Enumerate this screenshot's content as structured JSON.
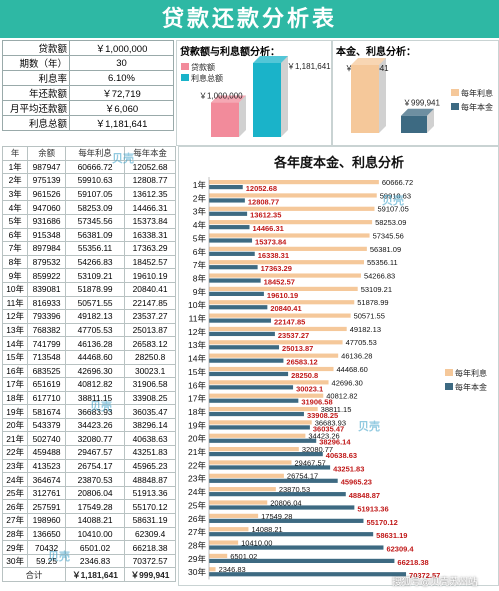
{
  "title": "贷款还款分析表",
  "summary": [
    {
      "label": "贷款额",
      "value": "￥1,000,000"
    },
    {
      "label": "期数（年）",
      "value": "30"
    },
    {
      "label": "利息率",
      "value": "6.10%"
    },
    {
      "label": "年还款额",
      "value": "￥72,719"
    },
    {
      "label": "月平均还款额",
      "value": "￥6,060"
    },
    {
      "label": "利息总额",
      "value": "￥1,181,641"
    }
  ],
  "panel1": {
    "title": "贷款额与利息额分析：",
    "legend": [
      "贷款额",
      "利息总额"
    ],
    "loan_label": "￥1,000,000",
    "interest_label": "￥1,181,641",
    "loan_value": 1000000,
    "interest_value": 1181641,
    "loan_color": "#f28b9b",
    "interest_color": "#1ab3c9"
  },
  "panel2": {
    "title": "本金、利息分析：",
    "legend": [
      "每年利息",
      "每年本金"
    ],
    "interest_label": "￥1,181,641",
    "principal_label": "￥999,941",
    "interest_value": 1181641,
    "principal_value": 999941,
    "interest_color": "#f5c89a",
    "principal_color": "#3d6a82"
  },
  "table": {
    "headers": [
      "年",
      "余额",
      "每年利息",
      "每年本金"
    ],
    "rows": [
      [
        "1年",
        "987947",
        "60666.72",
        "12052.68"
      ],
      [
        "2年",
        "975139",
        "59910.63",
        "12808.77"
      ],
      [
        "3年",
        "961526",
        "59107.05",
        "13612.35"
      ],
      [
        "4年",
        "947060",
        "58253.09",
        "14466.31"
      ],
      [
        "5年",
        "931686",
        "57345.56",
        "15373.84"
      ],
      [
        "6年",
        "915348",
        "56381.09",
        "16338.31"
      ],
      [
        "7年",
        "897984",
        "55356.11",
        "17363.29"
      ],
      [
        "8年",
        "879532",
        "54266.83",
        "18452.57"
      ],
      [
        "9年",
        "859922",
        "53109.21",
        "19610.19"
      ],
      [
        "10年",
        "839081",
        "51878.99",
        "20840.41"
      ],
      [
        "11年",
        "816933",
        "50571.55",
        "22147.85"
      ],
      [
        "12年",
        "793396",
        "49182.13",
        "23537.27"
      ],
      [
        "13年",
        "768382",
        "47705.53",
        "25013.87"
      ],
      [
        "14年",
        "741799",
        "46136.28",
        "26583.12"
      ],
      [
        "15年",
        "713548",
        "44468.60",
        "28250.8"
      ],
      [
        "16年",
        "683525",
        "42696.30",
        "30023.1"
      ],
      [
        "17年",
        "651619",
        "40812.82",
        "31906.58"
      ],
      [
        "18年",
        "617710",
        "38811.15",
        "33908.25"
      ],
      [
        "19年",
        "581674",
        "36683.93",
        "36035.47"
      ],
      [
        "20年",
        "543379",
        "34423.26",
        "38296.14"
      ],
      [
        "21年",
        "502740",
        "32080.77",
        "40638.63"
      ],
      [
        "22年",
        "459488",
        "29467.57",
        "43251.83"
      ],
      [
        "23年",
        "413523",
        "26754.17",
        "45965.23"
      ],
      [
        "24年",
        "364674",
        "23870.53",
        "48848.87"
      ],
      [
        "25年",
        "312761",
        "20806.04",
        "51913.36"
      ],
      [
        "26年",
        "257591",
        "17549.28",
        "55170.12"
      ],
      [
        "27年",
        "198960",
        "14088.21",
        "58631.19"
      ],
      [
        "28年",
        "136650",
        "10410.00",
        "62309.4"
      ],
      [
        "29年",
        "70432",
        "6501.02",
        "66218.38"
      ],
      [
        "30年",
        "59.25",
        "2346.83",
        "70372.57"
      ]
    ],
    "total_label": "合计",
    "total_interest": "￥1,181,641",
    "total_principal": "￥999,941"
  },
  "chart_data": {
    "type": "bar",
    "title": "各年度本金、利息分析",
    "categories": [
      "1年",
      "2年",
      "3年",
      "4年",
      "5年",
      "6年",
      "7年",
      "8年",
      "9年",
      "10年",
      "11年",
      "12年",
      "13年",
      "14年",
      "15年",
      "16年",
      "17年",
      "18年",
      "19年",
      "20年",
      "21年",
      "22年",
      "23年",
      "24年",
      "25年",
      "26年",
      "27年",
      "28年",
      "29年",
      "30年"
    ],
    "series": [
      {
        "name": "每年利息",
        "color": "#f5c89a",
        "label_color": "#111111",
        "values": [
          60666.72,
          59910.63,
          59107.05,
          58253.09,
          57345.56,
          56381.09,
          55356.11,
          54266.83,
          53109.21,
          51878.99,
          50571.55,
          49182.13,
          47705.53,
          46136.28,
          44468.6,
          42696.3,
          40812.82,
          38811.15,
          36683.93,
          34423.26,
          32080.77,
          29467.57,
          26754.17,
          23870.53,
          20806.04,
          17549.28,
          14088.21,
          10410.0,
          6501.02,
          2346.83
        ]
      },
      {
        "name": "每年本金",
        "color": "#3d6a82",
        "label_color": "#c01818",
        "values": [
          12052.68,
          12808.77,
          13612.35,
          14466.31,
          15373.84,
          16338.31,
          17363.29,
          18452.57,
          19610.19,
          20840.41,
          22147.85,
          23537.27,
          25013.87,
          26583.12,
          28250.8,
          30023.1,
          31906.58,
          33908.25,
          36035.47,
          38296.14,
          40638.63,
          43251.83,
          45965.23,
          48848.87,
          51913.36,
          55170.12,
          58631.19,
          62309.4,
          66218.38,
          70372.57
        ]
      }
    ],
    "xlim": [
      0,
      75000
    ],
    "orientation": "horizontal",
    "legend": "right"
  },
  "watermarks": [
    "贝壳",
    "贝壳",
    "贝壳",
    "贝壳",
    "贝壳"
  ],
  "footer": "搜狐号@贝壳苏州站"
}
